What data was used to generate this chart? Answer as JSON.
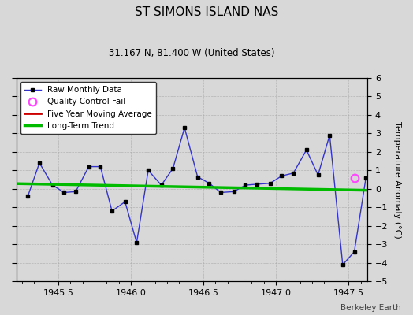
{
  "title": "ST SIMONS ISLAND NAS",
  "subtitle": "31.167 N, 81.400 W (United States)",
  "attribution": "Berkeley Earth",
  "ylabel": "Temperature Anomaly (°C)",
  "xlim": [
    1945.21,
    1947.63
  ],
  "ylim": [
    -5,
    6
  ],
  "yticks": [
    -5,
    -4,
    -3,
    -2,
    -1,
    0,
    1,
    2,
    3,
    4,
    5,
    6
  ],
  "background_color": "#d8d8d8",
  "plot_bg_color": "#d8d8d8",
  "raw_x": [
    1945.29,
    1945.37,
    1945.46,
    1945.54,
    1945.62,
    1945.71,
    1945.79,
    1945.87,
    1945.96,
    1946.04,
    1946.12,
    1946.21,
    1946.29,
    1946.37,
    1946.46,
    1946.54,
    1946.62,
    1946.71,
    1946.79,
    1946.87,
    1946.96,
    1947.04,
    1947.12,
    1947.21,
    1947.29,
    1947.37,
    1947.46,
    1947.54,
    1947.62
  ],
  "raw_y": [
    -0.4,
    1.4,
    0.2,
    -0.2,
    -0.15,
    1.2,
    1.2,
    -1.2,
    -0.7,
    -2.9,
    1.0,
    0.2,
    1.1,
    3.3,
    0.65,
    0.3,
    -0.2,
    -0.15,
    0.2,
    0.25,
    0.3,
    0.7,
    0.85,
    2.1,
    0.75,
    2.9,
    -4.1,
    -3.4,
    0.6
  ],
  "qc_fail_x": [
    1947.54
  ],
  "qc_fail_y": [
    0.6
  ],
  "trend_x": [
    1945.21,
    1947.63
  ],
  "trend_y": [
    0.28,
    -0.08
  ],
  "raw_line_color": "#3333cc",
  "raw_marker_color": "#000000",
  "trend_color": "#00bb00",
  "five_yr_color": "#cc0000",
  "qc_color": "#ff44ff",
  "legend_loc": "upper left"
}
